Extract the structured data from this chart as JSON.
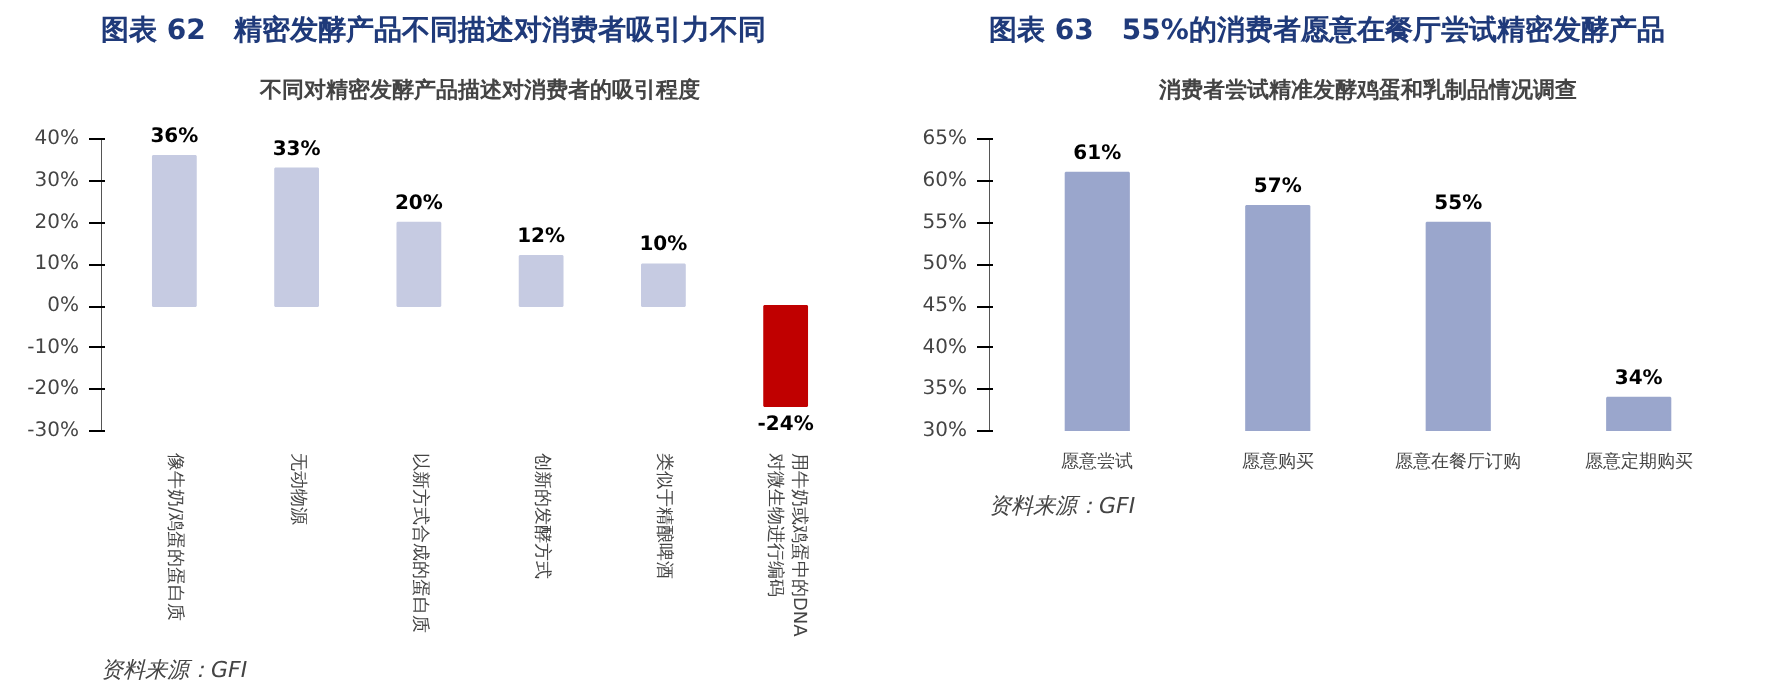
{
  "chart_data": [
    {
      "type": "bar",
      "title": "图表 62　精密发酵产品不同描述对消费者吸引力不同",
      "subtitle": "不同对精密发酵产品描述对消费者的吸引程度",
      "categories": [
        "像牛奶/鸡蛋的蛋白质",
        "无动物源",
        "以新方式合成的蛋白质",
        "创新的发酵方式",
        "类似于精酿啤酒",
        "用牛奶或鸡蛋中的DNA对微生物进行编码"
      ],
      "values": [
        36,
        33,
        20,
        12,
        10,
        -24
      ],
      "colors": [
        "#c6cbe2",
        "#c6cbe2",
        "#c6cbe2",
        "#c6cbe2",
        "#c6cbe2",
        "#c00000"
      ],
      "value_labels": [
        "36%",
        "33%",
        "20%",
        "12%",
        "10%",
        "-24%"
      ],
      "ylim": [
        -30,
        40
      ],
      "yticks": [
        {
          "value": -30,
          "label": "-30%"
        },
        {
          "value": -20,
          "label": "-20%"
        },
        {
          "value": -10,
          "label": "-10%"
        },
        {
          "value": 0,
          "label": "0%"
        },
        {
          "value": 10,
          "label": "10%"
        },
        {
          "value": 20,
          "label": "20%"
        },
        {
          "value": 30,
          "label": "30%"
        },
        {
          "value": 40,
          "label": "40%"
        }
      ],
      "grid": false,
      "annotations": [
        "资料来源：GFI"
      ]
    },
    {
      "type": "bar",
      "title": "图表 63　55%的消费者愿意在餐厅尝试精密发酵产品",
      "subtitle": "消费者尝试精准发酵鸡蛋和乳制品情况调查",
      "categories": [
        "愿意尝试",
        "愿意购买",
        "愿意在餐厅订购",
        "愿意定期购买"
      ],
      "values": [
        61,
        57,
        55,
        34
      ],
      "colors": [
        "#9aa6cc",
        "#9aa6cc",
        "#9aa6cc",
        "#9aa6cc"
      ],
      "value_labels": [
        "61%",
        "57%",
        "55%",
        "34%"
      ],
      "ylim": [
        30,
        65
      ],
      "yticks": [
        {
          "value": 30,
          "label": "30%"
        },
        {
          "value": 35,
          "label": "35%"
        },
        {
          "value": 40,
          "label": "40%"
        },
        {
          "value": 45,
          "label": "45%"
        },
        {
          "value": 50,
          "label": "50%"
        },
        {
          "value": 55,
          "label": "55%"
        },
        {
          "value": 60,
          "label": "60%"
        },
        {
          "value": 65,
          "label": "65%"
        }
      ],
      "grid": false,
      "annotations": [
        "资料来源：GFI"
      ]
    }
  ]
}
